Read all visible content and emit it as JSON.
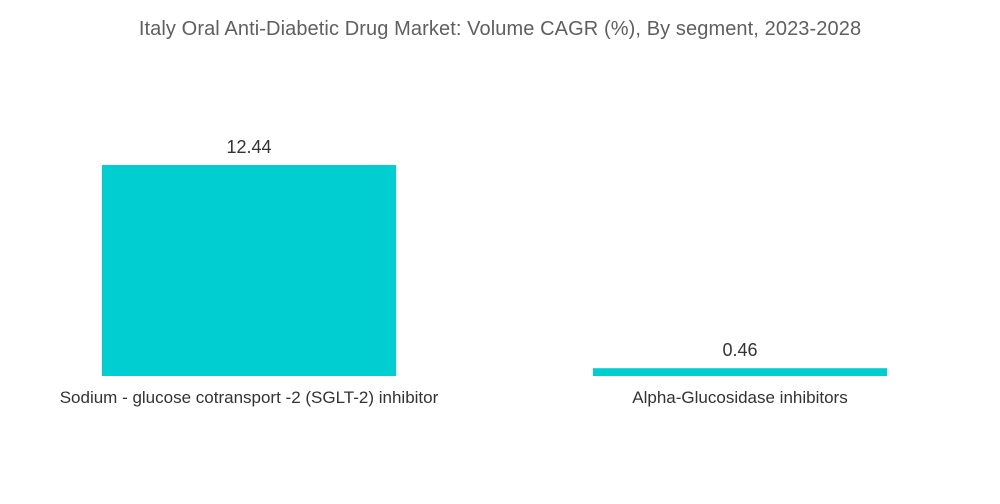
{
  "chart_data": {
    "type": "bar",
    "title": "Italy Oral Anti-Diabetic Drug Market: Volume CAGR (%), By segment, 2023-2028",
    "categories": [
      "Sodium - glucose cotransport -2 (SGLT-2) inhibitor",
      "Alpha-Glucosidase inhibitors"
    ],
    "values": [
      12.44,
      0.46
    ],
    "value_labels": [
      "12.44",
      "0.46"
    ],
    "xlabel": "",
    "ylabel": "",
    "ylim": [
      0,
      12.44
    ],
    "grid": false,
    "legend": "none",
    "bar_color": "#00CED1"
  }
}
